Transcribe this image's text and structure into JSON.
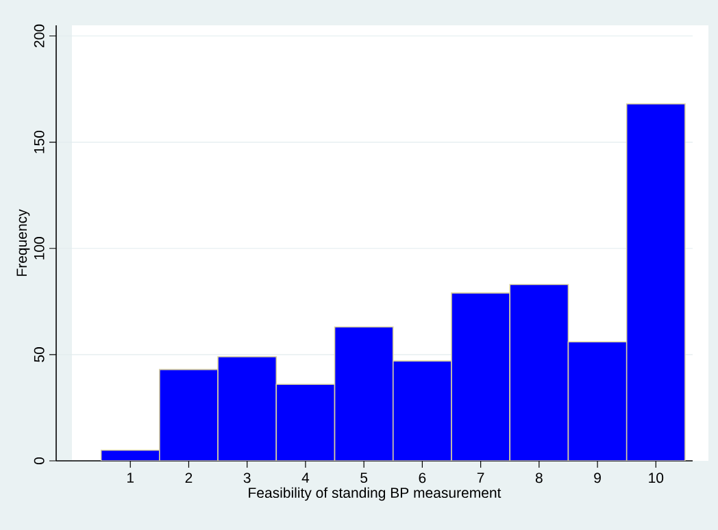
{
  "chart_data": {
    "type": "histogram",
    "xlabel": "Feasibility of standing BP measurement",
    "ylabel": "Frequency",
    "bins": [
      0.5,
      1.5,
      2.5,
      3.5,
      4.5,
      5.5,
      6.5,
      7.5,
      8.5,
      9.5,
      10.5
    ],
    "values": [
      5,
      43,
      49,
      36,
      63,
      47,
      79,
      83,
      56,
      168
    ],
    "color": "#0000ff",
    "xlim": [
      -0.27,
      10.63
    ],
    "ylim": [
      0,
      205
    ],
    "xticks": [
      1,
      2,
      3,
      4,
      5,
      6,
      7,
      8,
      9,
      10
    ],
    "yticks": [
      0,
      50,
      100,
      150,
      200
    ],
    "grid": "y"
  }
}
